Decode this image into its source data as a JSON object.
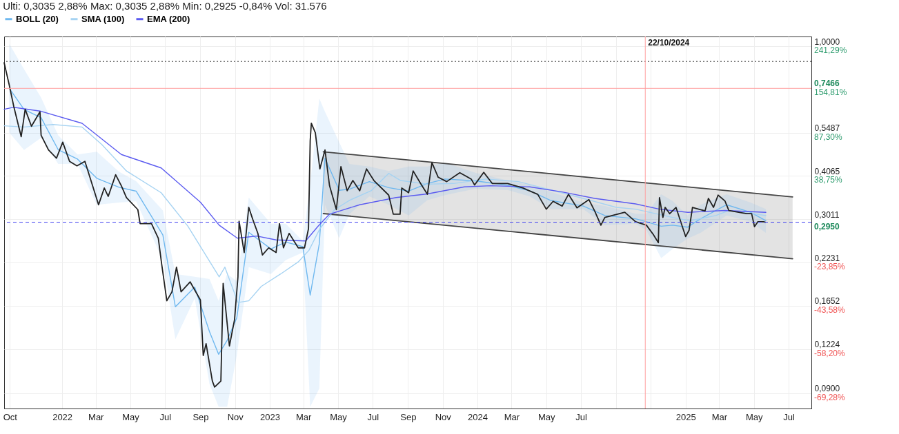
{
  "chart_data": {
    "type": "line",
    "title": "Ulti: 0,3035 2,88%   Max: 0,3035 2,88%   Min: 0,2925 -0,84%   Vol: 31.576",
    "legend": "top left",
    "grid": true,
    "log": "y",
    "xlim": [
      "2021-09-21",
      "2025-08-10"
    ],
    "xticks": [
      {
        "value": "2021-10-01",
        "label": "Oct"
      },
      {
        "value": "2022-01-01",
        "label": "2022"
      },
      {
        "value": "2022-03-01",
        "label": "Mar"
      },
      {
        "value": "2022-05-01",
        "label": "May"
      },
      {
        "value": "2022-07-01",
        "label": "Jul"
      },
      {
        "value": "2022-09-01",
        "label": "Sep"
      },
      {
        "value": "2022-11-01",
        "label": "Nov"
      },
      {
        "value": "2023-01-01",
        "label": "2023"
      },
      {
        "value": "2023-03-01",
        "label": "Mar"
      },
      {
        "value": "2023-05-01",
        "label": "May"
      },
      {
        "value": "2023-07-01",
        "label": "Jul"
      },
      {
        "value": "2023-09-01",
        "label": "Sep"
      },
      {
        "value": "2023-11-01",
        "label": "Nov"
      },
      {
        "value": "2024-01-01",
        "label": "2024"
      },
      {
        "value": "2024-03-01",
        "label": "Mar"
      },
      {
        "value": "2024-05-01",
        "label": "May"
      },
      {
        "value": "2024-07-01",
        "label": "Jul"
      },
      {
        "value": "2024-09-01",
        "label": null
      },
      {
        "value": "2024-11-01",
        "label": null
      },
      {
        "value": "2025-01-01",
        "label": "2025"
      },
      {
        "value": "2025-03-01",
        "label": "Mar"
      },
      {
        "value": "2025-05-01",
        "label": "May"
      },
      {
        "value": "2025-07-01",
        "label": "Jul"
      }
    ],
    "ylim": [
      0.081,
      1.07
    ],
    "yticks": [
      {
        "value": 1.0,
        "label": "1,0000"
      },
      {
        "value": 0.5487,
        "label": "0,5487"
      },
      {
        "value": 0.4065,
        "label": "0,4065"
      },
      {
        "value": 0.3011,
        "label": "0,3011"
      },
      {
        "value": 0.2231,
        "label": "0,2231"
      },
      {
        "value": 0.1652,
        "label": "0,1652"
      },
      {
        "value": 0.1224,
        "label": "0,1224"
      },
      {
        "value": 0.09,
        "label": "0,0900"
      }
    ],
    "series": [
      {
        "color": "#444444",
        "x": [
          "2023-04-05",
          "2025-07-08"
        ],
        "values": [
          0.4807,
          0.3514
        ],
        "lower": [
          0.3133,
          0.229
        ],
        "upper": [
          0.4807,
          0.3514
        ]
      },
      {
        "color": "#444444",
        "x": [
          "2023-04-05",
          "2025-07-08"
        ],
        "values": [
          0.3133,
          0.229
        ]
      },
      {
        "name": "BOLL (20)",
        "color": "#6fb8ef",
        "x": [
          "2021-09-30",
          "2021-10-26",
          "2021-11-25",
          "2021-12-25",
          "2022-01-28",
          "2022-03-03",
          "2022-04-11",
          "2022-05-11",
          "2022-06-27",
          "2022-07-19",
          "2022-08-22",
          "2022-09-17",
          "2022-10-03",
          "2022-10-18",
          "2022-11-04",
          "2022-11-25",
          "2023-01-03",
          "2023-01-29",
          "2023-02-28",
          "2023-03-13",
          "2023-03-29",
          "2023-04-08",
          "2023-05-03",
          "2023-05-21",
          "2023-06-25",
          "2023-07-29",
          "2023-09-02",
          "2023-10-05",
          "2023-11-05",
          "2023-12-28",
          "2024-02-23",
          "2024-04-02",
          "2024-05-09",
          "2024-07-05",
          "2024-08-12",
          "2024-10-05",
          "2024-10-24",
          "2024-11-19",
          "2024-12-09",
          "2025-01-04",
          "2025-01-27",
          "2025-03-14",
          "2025-04-25",
          "2025-05-22"
        ],
        "values": [
          0.747,
          0.645,
          0.609,
          0.488,
          0.457,
          0.4,
          0.376,
          0.366,
          0.27,
          0.164,
          0.188,
          0.138,
          0.118,
          0.13,
          0.152,
          0.275,
          0.245,
          0.257,
          0.249,
          0.178,
          0.254,
          0.46,
          0.368,
          0.371,
          0.391,
          0.375,
          0.366,
          0.386,
          0.398,
          0.393,
          0.381,
          0.367,
          0.343,
          0.33,
          0.309,
          0.302,
          0.296,
          0.287,
          0.289,
          0.285,
          0.302,
          0.333,
          0.316,
          0.298
        ],
        "lower": [
          0.549,
          0.487,
          0.53,
          0.442,
          0.442,
          0.333,
          0.338,
          0.341,
          0.227,
          0.131,
          0.174,
          0.096,
          0.082,
          0.082,
          0.117,
          0.216,
          0.206,
          0.227,
          0.239,
          0.082,
          0.093,
          0.333,
          0.264,
          0.312,
          0.353,
          0.333,
          0.309,
          0.344,
          0.356,
          0.372,
          0.369,
          0.353,
          0.323,
          0.323,
          0.289,
          0.292,
          0.279,
          0.23,
          0.245,
          0.263,
          0.274,
          0.309,
          0.296,
          0.274
        ],
        "upper": [
          1.018,
          0.853,
          0.7,
          0.539,
          0.472,
          0.481,
          0.419,
          0.392,
          0.32,
          0.206,
          0.202,
          0.199,
          0.171,
          0.206,
          0.196,
          0.35,
          0.292,
          0.292,
          0.259,
          0.386,
          0.696,
          0.635,
          0.514,
          0.442,
          0.434,
          0.421,
          0.434,
          0.434,
          0.446,
          0.416,
          0.394,
          0.382,
          0.364,
          0.338,
          0.33,
          0.313,
          0.313,
          0.358,
          0.342,
          0.309,
          0.333,
          0.358,
          0.338,
          0.323
        ]
      },
      {
        "name": "SMA (100)",
        "color": "#a6d3f2",
        "x": [
          "2021-09-21",
          "2021-10-26",
          "2021-12-16",
          "2022-02-05",
          "2022-03-12",
          "2022-04-24",
          "2022-06-24",
          "2022-08-10",
          "2022-10-04",
          "2022-10-14",
          "2022-11-06",
          "2022-11-25",
          "2022-12-17",
          "2023-01-20",
          "2023-02-20",
          "2023-03-11",
          "2023-03-30",
          "2023-04-25",
          "2023-05-22",
          "2023-06-28",
          "2023-07-29",
          "2023-08-19",
          "2023-10-05",
          "2023-11-20",
          "2024-01-16",
          "2024-03-13",
          "2024-05-09",
          "2024-07-05",
          "2024-09-01",
          "2024-10-05",
          "2024-12-09",
          "2025-01-08",
          "2025-02-23",
          "2025-03-18",
          "2025-05-22"
        ],
        "values": [
          0.576,
          0.571,
          0.581,
          0.571,
          0.505,
          0.421,
          0.362,
          0.287,
          0.202,
          0.216,
          0.169,
          0.171,
          0.189,
          0.206,
          0.224,
          0.243,
          0.282,
          0.322,
          0.344,
          0.367,
          0.414,
          0.394,
          0.384,
          0.386,
          0.398,
          0.391,
          0.369,
          0.348,
          0.327,
          0.323,
          0.305,
          0.298,
          0.309,
          0.32,
          0.309
        ]
      },
      {
        "name": "EMA (200)",
        "color": "#5b5bf0",
        "x": [
          "2021-09-21",
          "2021-10-08",
          "2021-11-23",
          "2022-02-05",
          "2022-04-15",
          "2022-06-24",
          "2022-09-01",
          "2022-10-04",
          "2022-11-05",
          "2022-12-09",
          "2023-01-12",
          "2023-03-05",
          "2023-03-27",
          "2023-04-16",
          "2023-06-08",
          "2023-08-11",
          "2023-10-05",
          "2023-12-09",
          "2024-01-24",
          "2024-04-02",
          "2024-05-29",
          "2024-07-25",
          "2024-10-05",
          "2024-11-16",
          "2025-01-05",
          "2025-03-11",
          "2025-05-22"
        ],
        "values": [
          0.646,
          0.655,
          0.638,
          0.586,
          0.472,
          0.43,
          0.339,
          0.289,
          0.264,
          0.268,
          0.261,
          0.259,
          0.287,
          0.312,
          0.333,
          0.35,
          0.359,
          0.377,
          0.38,
          0.377,
          0.364,
          0.348,
          0.335,
          0.323,
          0.316,
          0.32,
          0.316
        ]
      },
      {
        "color": "#222222",
        "x": [
          "2021-09-21",
          "2021-09-30",
          "2021-10-08",
          "2021-10-21",
          "2021-10-28",
          "2021-11-08",
          "2021-11-23",
          "2021-11-25",
          "2021-12-08",
          "2021-12-22",
          "2022-01-02",
          "2022-01-14",
          "2022-01-27",
          "2022-02-10",
          "2022-03-06",
          "2022-03-16",
          "2022-03-23",
          "2022-04-05",
          "2022-04-15",
          "2022-04-24",
          "2022-05-14",
          "2022-05-18",
          "2022-06-07",
          "2022-06-19",
          "2022-06-25",
          "2022-07-04",
          "2022-07-13",
          "2022-07-21",
          "2022-07-29",
          "2022-08-14",
          "2022-09-01",
          "2022-09-06",
          "2022-09-11",
          "2022-09-22",
          "2022-09-26",
          "2022-10-07",
          "2022-10-11",
          "2022-10-22",
          "2022-10-31",
          "2022-11-06",
          "2022-11-08",
          "2022-11-17",
          "2022-11-25",
          "2022-12-02",
          "2022-12-11",
          "2022-12-19",
          "2022-12-30",
          "2023-01-12",
          "2023-01-18",
          "2023-01-25",
          "2023-02-04",
          "2023-02-20",
          "2023-03-03",
          "2023-03-10",
          "2023-03-13",
          "2023-03-15",
          "2023-03-22",
          "2023-03-30",
          "2023-04-08",
          "2023-04-16",
          "2023-04-28",
          "2023-05-06",
          "2023-05-17",
          "2023-05-27",
          "2023-06-08",
          "2023-06-20",
          "2023-07-03",
          "2023-07-29",
          "2023-08-06",
          "2023-08-18",
          "2023-08-21",
          "2023-09-02",
          "2023-09-10",
          "2023-09-23",
          "2023-10-05",
          "2023-10-13",
          "2023-10-24",
          "2023-11-08",
          "2023-12-01",
          "2023-12-21",
          "2023-12-27",
          "2024-01-12",
          "2024-01-27",
          "2024-02-23",
          "2024-03-21",
          "2024-04-16",
          "2024-05-01",
          "2024-05-13",
          "2024-05-29",
          "2024-06-09",
          "2024-06-24",
          "2024-07-15",
          "2024-07-25",
          "2024-08-05",
          "2024-08-12",
          "2024-09-16",
          "2024-10-05",
          "2024-10-24",
          "2024-11-05",
          "2024-11-14",
          "2024-11-16",
          "2024-11-22",
          "2024-11-26",
          "2024-12-04",
          "2024-12-15",
          "2025-01-01",
          "2025-01-07",
          "2025-01-13",
          "2025-02-04",
          "2025-02-10",
          "2025-02-19",
          "2025-02-27",
          "2025-03-11",
          "2025-03-18",
          "2025-04-18",
          "2025-04-27",
          "2025-05-02",
          "2025-05-08",
          "2025-05-18",
          "2025-05-21"
        ],
        "values": [
          0.892,
          0.764,
          0.658,
          0.534,
          0.646,
          0.574,
          0.635,
          0.539,
          0.487,
          0.46,
          0.514,
          0.45,
          0.436,
          0.45,
          0.333,
          0.374,
          0.353,
          0.41,
          0.38,
          0.35,
          0.322,
          0.292,
          0.292,
          0.264,
          0.22,
          0.171,
          0.182,
          0.216,
          0.182,
          0.195,
          0.172,
          0.117,
          0.127,
          0.098,
          0.094,
          0.098,
          0.193,
          0.125,
          0.15,
          0.202,
          0.297,
          0.239,
          0.327,
          0.301,
          0.273,
          0.235,
          0.247,
          0.239,
          0.292,
          0.247,
          0.273,
          0.247,
          0.247,
          0.282,
          0.52,
          0.586,
          0.549,
          0.427,
          0.487,
          0.38,
          0.322,
          0.434,
          0.367,
          0.394,
          0.367,
          0.427,
          0.394,
          0.356,
          0.312,
          0.312,
          0.374,
          0.362,
          0.421,
          0.386,
          0.358,
          0.446,
          0.403,
          0.391,
          0.416,
          0.398,
          0.382,
          0.417,
          0.386,
          0.386,
          0.374,
          0.358,
          0.323,
          0.341,
          0.33,
          0.358,
          0.326,
          0.345,
          0.319,
          0.289,
          0.305,
          0.316,
          0.296,
          0.289,
          0.271,
          0.256,
          0.35,
          0.305,
          0.327,
          0.313,
          0.327,
          0.267,
          0.279,
          0.327,
          0.319,
          0.348,
          0.327,
          0.356,
          0.342,
          0.32,
          0.313,
          0.313,
          0.286,
          0.296,
          0.296,
          0.295
        ]
      }
    ],
    "ref_lines": [
      {
        "axis": "y",
        "value": 0.9,
        "color": "#333333",
        "line_style": "dotted"
      },
      {
        "axis": "y",
        "value": 0.7466,
        "label": "0,7466",
        "color": "#ff9f9f",
        "line_style": "solid"
      },
      {
        "axis": "y",
        "value": 0.295,
        "label": "0,2950",
        "color": "#3b3bf0",
        "line_style": "dashed"
      },
      {
        "axis": "x",
        "value": "2024-10-22",
        "label": "22/10/2024",
        "color": "#ff9f9f",
        "line_style": "solid"
      }
    ],
    "annotations": [
      "241,29%",
      "154,81%",
      "87,30%",
      "38,75%",
      "-23,85%",
      "-43,58%",
      "-58,20%",
      "-69,28%"
    ]
  }
}
